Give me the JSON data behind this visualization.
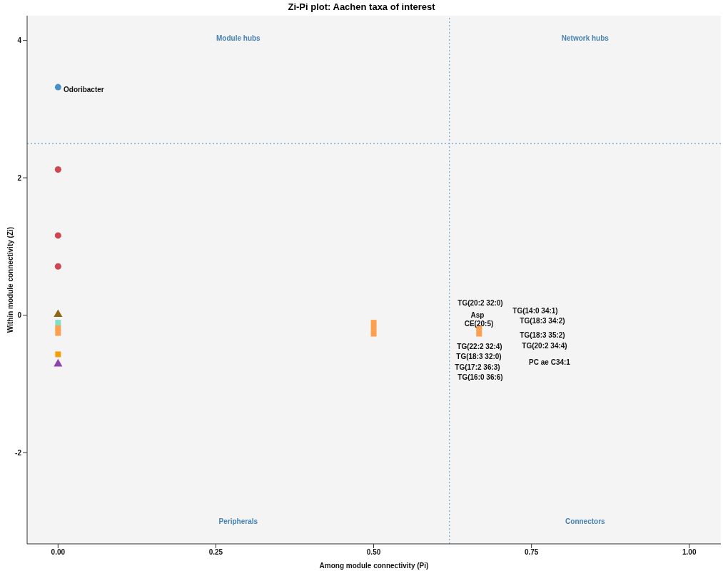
{
  "chart_data": {
    "type": "scatter",
    "title": "Zi-Pi plot: Aachen taxa of interest",
    "xlabel": "Among module connectivity (Pi)",
    "ylabel": "Within module connectivity (Zi)",
    "xlim": [
      -0.049,
      1.05
    ],
    "ylim": [
      -3.33,
      4.36
    ],
    "xticks": [
      {
        "value": 0,
        "label": "0.00"
      },
      {
        "value": 0.25,
        "label": "0.25"
      },
      {
        "value": 0.5,
        "label": "0.50"
      },
      {
        "value": 0.75,
        "label": "0.75"
      },
      {
        "value": 1,
        "label": "1.00"
      }
    ],
    "yticks": [
      -2,
      0,
      2,
      4
    ],
    "grid": false,
    "series": [
      {
        "color": "#4a8fcc",
        "marker": "circle",
        "x": [
          0
        ],
        "values": [
          3.32
        ]
      },
      {
        "color": "#d1454f",
        "marker": "circle",
        "x": [
          0,
          0,
          0
        ],
        "values": [
          2.12,
          1.16,
          0.71
        ]
      },
      {
        "color": "#8b6914",
        "marker": "triangle",
        "x": [
          0
        ],
        "values": [
          0.01
        ]
      },
      {
        "color": "#7fe0c4",
        "marker": "square",
        "x": [
          0
        ],
        "values": [
          -0.11
        ]
      },
      {
        "color": "#fca050",
        "marker": "square",
        "x": [
          0,
          0,
          0.5,
          0.5,
          0.5,
          0.667,
          0.667
        ],
        "values": [
          -0.19,
          -0.26,
          -0.11,
          -0.19,
          -0.27,
          -0.19,
          -0.27
        ]
      },
      {
        "color": "#f5a000",
        "marker": "square",
        "x": [
          0
        ],
        "values": [
          -0.57
        ]
      },
      {
        "color": "#8e44ad",
        "marker": "triangle",
        "x": [
          0
        ],
        "values": [
          -0.71
        ]
      }
    ],
    "ref_lines": [
      {
        "axis": "x",
        "value": 0.62,
        "color": "#7aaad6",
        "line_style": "dotted"
      },
      {
        "axis": "y",
        "value": 2.5,
        "color": "#7aaad6",
        "line_style": "dotted"
      }
    ],
    "annotations": [
      "Module hubs",
      "Network hubs",
      "Peripherals",
      "Connectors",
      "Odoribacter",
      "TG(20:2 32:0)",
      "Asp",
      "CE(20:5)",
      "TG(14:0 34:1)",
      "TG(18:3 34:2)",
      "TG(18:3 35:2)",
      "TG(20:2 34:4)",
      "TG(22:2 32:4)",
      "TG(18:3 32:0)",
      "TG(17:2 36:3)",
      "TG(16:0 36:6)",
      "PC ae C34:1"
    ]
  }
}
